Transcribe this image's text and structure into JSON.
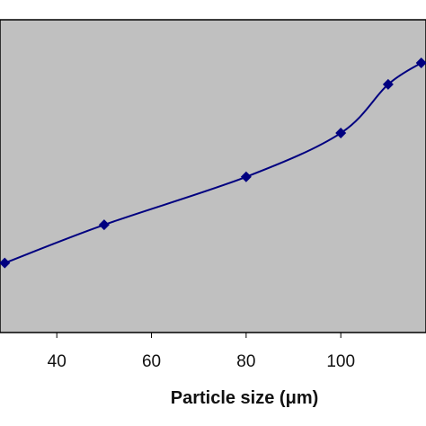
{
  "chart_data": {
    "type": "line",
    "title": "",
    "xlabel": "Particle size (μm)",
    "ylabel": "",
    "xlim": [
      28,
      118
    ],
    "x_ticks": [
      40,
      60,
      80,
      100
    ],
    "grid": false,
    "legend": "none",
    "colors": {
      "plot_background": "#c0c0c0",
      "series": "#000080",
      "axis": "#000000"
    },
    "series": [
      {
        "marker": "diamond",
        "smooth": true,
        "points": [
          {
            "x": 29,
            "y": 1.0
          },
          {
            "x": 50,
            "y": 1.55
          },
          {
            "x": 80,
            "y": 2.24
          },
          {
            "x": 100,
            "y": 2.87
          },
          {
            "x": 110,
            "y": 3.57
          },
          {
            "x": 117,
            "y": 3.88
          }
        ]
      }
    ],
    "y_range_hidden": [
      0,
      4.5
    ]
  }
}
